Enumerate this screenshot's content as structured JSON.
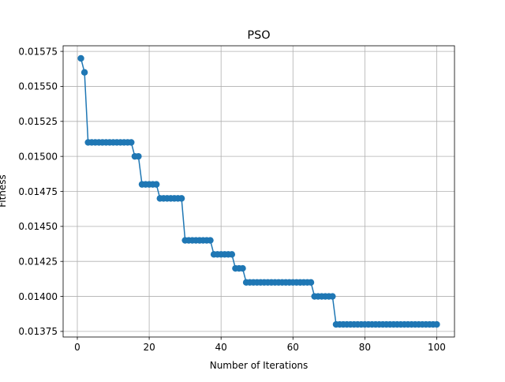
{
  "chart_data": {
    "type": "line",
    "title": "PSO",
    "xlabel": "Number of Iterations",
    "ylabel": "Fitness",
    "xlim": [
      -3.95,
      104.95
    ],
    "ylim": [
      0.01371,
      0.01579
    ],
    "x_ticks": [
      0,
      20,
      40,
      60,
      80,
      100
    ],
    "x_tick_labels": [
      "0",
      "20",
      "40",
      "60",
      "80",
      "100"
    ],
    "y_ticks": [
      0.01375,
      0.014,
      0.01425,
      0.0145,
      0.01475,
      0.015,
      0.01525,
      0.0155,
      0.01575
    ],
    "y_tick_labels": [
      "0.01375",
      "0.01400",
      "0.01425",
      "0.01450",
      "0.01475",
      "0.01500",
      "0.01525",
      "0.01550",
      "0.01575"
    ],
    "grid": true,
    "colors": {
      "line": "#1f77b4",
      "grid": "#b0b0b0",
      "axes": "#000000"
    },
    "marker": "circle",
    "series": [
      {
        "x": [
          1,
          2,
          3,
          4,
          5,
          6,
          7,
          8,
          9,
          10,
          11,
          12,
          13,
          14,
          15,
          16,
          17,
          18,
          19,
          20,
          21,
          22,
          23,
          24,
          25,
          26,
          27,
          28,
          29,
          30,
          31,
          32,
          33,
          34,
          35,
          36,
          37,
          38,
          39,
          40,
          41,
          42,
          43,
          44,
          45,
          46,
          47,
          48,
          49,
          50,
          51,
          52,
          53,
          54,
          55,
          56,
          57,
          58,
          59,
          60,
          61,
          62,
          63,
          64,
          65,
          66,
          67,
          68,
          69,
          70,
          71,
          72,
          73,
          74,
          75,
          76,
          77,
          78,
          79,
          80,
          81,
          82,
          83,
          84,
          85,
          86,
          87,
          88,
          89,
          90,
          91,
          92,
          93,
          94,
          95,
          96,
          97,
          98,
          99,
          100
        ],
        "values": [
          0.0157,
          0.0156,
          0.0151,
          0.0151,
          0.0151,
          0.0151,
          0.0151,
          0.0151,
          0.0151,
          0.0151,
          0.0151,
          0.0151,
          0.0151,
          0.0151,
          0.0151,
          0.015,
          0.015,
          0.0148,
          0.0148,
          0.0148,
          0.0148,
          0.0148,
          0.0147,
          0.0147,
          0.0147,
          0.0147,
          0.0147,
          0.0147,
          0.0147,
          0.0144,
          0.0144,
          0.0144,
          0.0144,
          0.0144,
          0.0144,
          0.0144,
          0.0144,
          0.0143,
          0.0143,
          0.0143,
          0.0143,
          0.0143,
          0.0143,
          0.0142,
          0.0142,
          0.0142,
          0.0141,
          0.0141,
          0.0141,
          0.0141,
          0.0141,
          0.0141,
          0.0141,
          0.0141,
          0.0141,
          0.0141,
          0.0141,
          0.0141,
          0.0141,
          0.0141,
          0.0141,
          0.0141,
          0.0141,
          0.0141,
          0.0141,
          0.014,
          0.014,
          0.014,
          0.014,
          0.014,
          0.014,
          0.0138,
          0.0138,
          0.0138,
          0.0138,
          0.0138,
          0.0138,
          0.0138,
          0.0138,
          0.0138,
          0.0138,
          0.0138,
          0.0138,
          0.0138,
          0.0138,
          0.0138,
          0.0138,
          0.0138,
          0.0138,
          0.0138,
          0.0138,
          0.0138,
          0.0138,
          0.0138,
          0.0138,
          0.0138,
          0.0138,
          0.0138,
          0.0138,
          0.0138
        ]
      }
    ]
  }
}
